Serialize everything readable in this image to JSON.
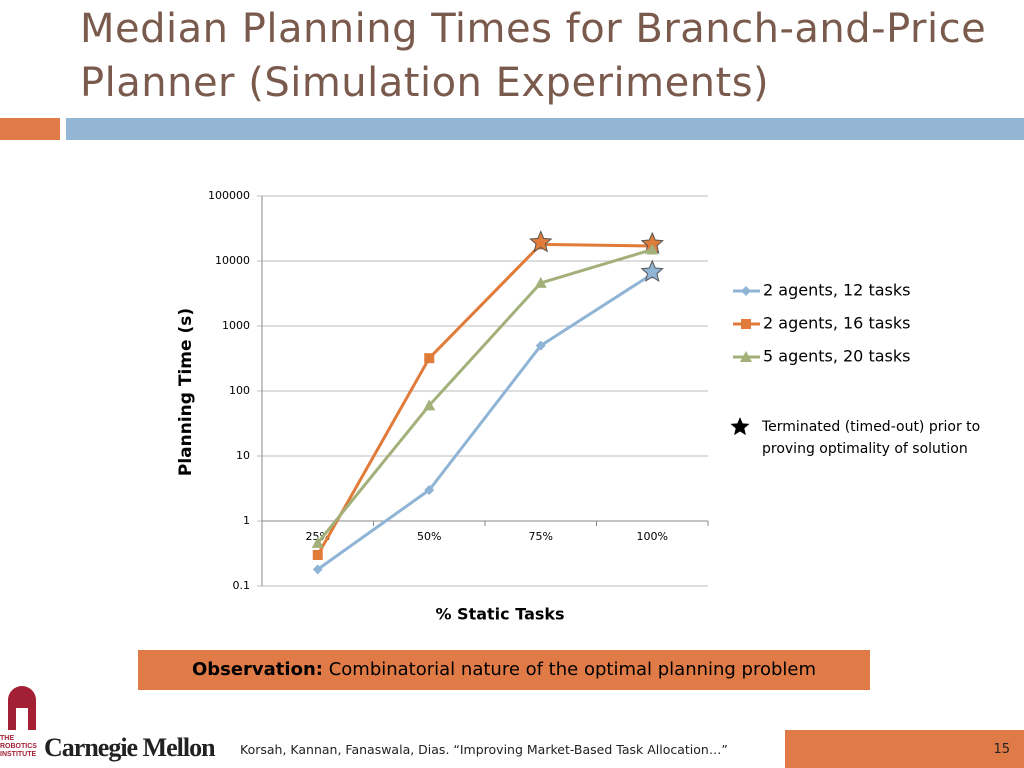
{
  "title": "Median Planning Times for Branch-and-Price Planner (Simulation Experiments)",
  "chart_data": {
    "type": "line",
    "y_label": "Planning Time (s)",
    "x_label": "% Static Tasks",
    "categories": [
      "25%",
      "50%",
      "75%",
      "100%"
    ],
    "log_y": true,
    "grid": true,
    "x_axis_at": 1,
    "ylim": [
      0.1,
      100000
    ],
    "yticks": [
      0.1,
      1,
      10,
      100,
      1000,
      10000,
      100000
    ],
    "series": [
      {
        "name": "2 agents, 12 tasks",
        "color": "#8fb4d6",
        "marker": "diamond",
        "values": [
          0.18,
          3,
          500,
          6300
        ],
        "timed_out": [
          false,
          false,
          false,
          true
        ]
      },
      {
        "name": "2 agents, 16 tasks",
        "color": "#e07b39",
        "marker": "square",
        "values": [
          0.3,
          320,
          18000,
          17000
        ],
        "timed_out": [
          false,
          false,
          true,
          true
        ]
      },
      {
        "name": "5 agents, 20 tasks",
        "color": "#a3b07a",
        "marker": "triangle",
        "values": [
          0.46,
          60,
          4600,
          15000
        ],
        "timed_out": [
          false,
          false,
          false,
          false
        ]
      }
    ],
    "star_note": "Terminated (timed-out) prior to proving optimality of solution"
  },
  "observation": {
    "label": "Observation:",
    "text": "Combinatorial nature of the optimal planning problem"
  },
  "footer": {
    "institute": "THE ROBOTICS INSTITUTE",
    "university": "Carnegie Mellon",
    "citation": "Korsah, Kannan, Fanaswala, Dias. “Improving Market-Based Task Allocation…”",
    "page_number": 15
  }
}
